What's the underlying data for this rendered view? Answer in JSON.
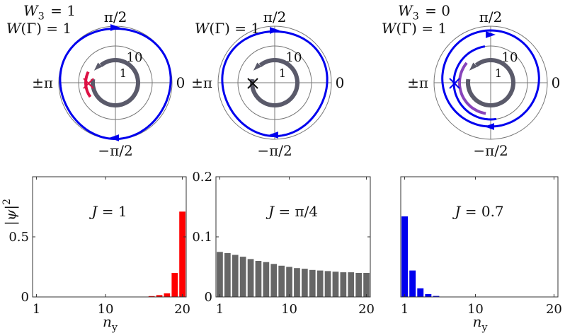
{
  "chart_data": [
    {
      "type": "polar",
      "annotations": [
        "W_3 = 1",
        "W(Γ) = 1"
      ],
      "angle_labels": [
        "π/2",
        "0",
        "±π",
        "−π/2"
      ],
      "radial_labels": [
        "1",
        "10"
      ],
      "curves": [
        {
          "color": "#0000ee",
          "description": "outer winding loop"
        },
        {
          "color": "#5a5a6a",
          "description": "inner winding loop"
        },
        {
          "color": "#dd1144",
          "description": "inner segment"
        }
      ],
      "marker": {
        "symbol": "×",
        "color": "#dd1144"
      }
    },
    {
      "type": "polar",
      "annotations": [
        "W(Γ) = 1"
      ],
      "angle_labels": [
        "π/2",
        "0",
        "±π",
        "−π/2"
      ],
      "radial_labels": [
        "1",
        "10"
      ],
      "curves": [
        {
          "color": "#0000ee",
          "description": "outer winding loop"
        },
        {
          "color": "#5a5a6a",
          "description": "inner winding loop"
        }
      ],
      "marker": {
        "symbol": "×",
        "color": "#111111"
      }
    },
    {
      "type": "polar",
      "annotations": [
        "W_3 = 0",
        "W(Γ) = 1"
      ],
      "angle_labels": [
        "π/2",
        "0",
        "±π",
        "−π/2"
      ],
      "radial_labels": [
        "1",
        "10"
      ],
      "curves": [
        {
          "color": "#0000ee",
          "description": "outer winding loop"
        },
        {
          "color": "#5a5a6a",
          "description": "inner winding loop"
        },
        {
          "color": "#8844bb",
          "description": "inner segment"
        }
      ],
      "marker": {
        "symbol": "×",
        "color": "#0000ee"
      }
    },
    {
      "type": "bar",
      "title": "J = 1",
      "xlabel": "n_y",
      "ylabel": "|ψ|²",
      "color": "#ff0000",
      "x": [
        1,
        2,
        3,
        4,
        5,
        6,
        7,
        8,
        9,
        10,
        11,
        12,
        13,
        14,
        15,
        16,
        17,
        18,
        19,
        20
      ],
      "values": [
        0.0,
        0.0,
        0.0,
        0.0,
        0.0,
        0.0,
        0.0,
        0.0,
        0.0,
        0.0,
        0.0,
        0.0,
        0.0,
        0.001,
        0.003,
        0.007,
        0.015,
        0.03,
        0.2,
        0.71
      ],
      "xticks": [
        1,
        10,
        20
      ],
      "yticks": [
        0,
        0.5
      ],
      "xlim": [
        0.5,
        20.5
      ],
      "ylim": [
        0,
        1.0
      ]
    },
    {
      "type": "bar",
      "title": "J = π/4",
      "xlabel": "",
      "ylabel": "",
      "color": "#666666",
      "x": [
        1,
        2,
        3,
        4,
        5,
        6,
        7,
        8,
        9,
        10,
        11,
        12,
        13,
        14,
        15,
        16,
        17,
        18,
        19,
        20
      ],
      "values": [
        0.075,
        0.073,
        0.07,
        0.067,
        0.063,
        0.06,
        0.058,
        0.055,
        0.052,
        0.05,
        0.048,
        0.047,
        0.045,
        0.044,
        0.043,
        0.042,
        0.041,
        0.041,
        0.04,
        0.04
      ],
      "xticks": [
        1,
        10,
        20
      ],
      "yticks": [
        0,
        0.1,
        0.2
      ],
      "xlim": [
        0.5,
        20.5
      ],
      "ylim": [
        0,
        0.2
      ]
    },
    {
      "type": "bar",
      "title": "J = 0.7",
      "xlabel": "n_y",
      "ylabel": "",
      "color": "#0000ee",
      "x": [
        1,
        2,
        3,
        4,
        5,
        6,
        7,
        8,
        9,
        10,
        11,
        12,
        13,
        14,
        15,
        16,
        17,
        18,
        19,
        20
      ],
      "values": [
        0.67,
        0.22,
        0.072,
        0.024,
        0.008,
        0.003,
        0.001,
        0.0,
        0.0,
        0.0,
        0.0,
        0.0,
        0.0,
        0.0,
        0.0,
        0.0,
        0.0,
        0.0,
        0.0,
        0.0
      ],
      "xticks": [
        1,
        10,
        20
      ],
      "yticks": [],
      "xlim": [
        0.5,
        20.5
      ],
      "ylim": [
        0,
        1.0
      ]
    }
  ]
}
